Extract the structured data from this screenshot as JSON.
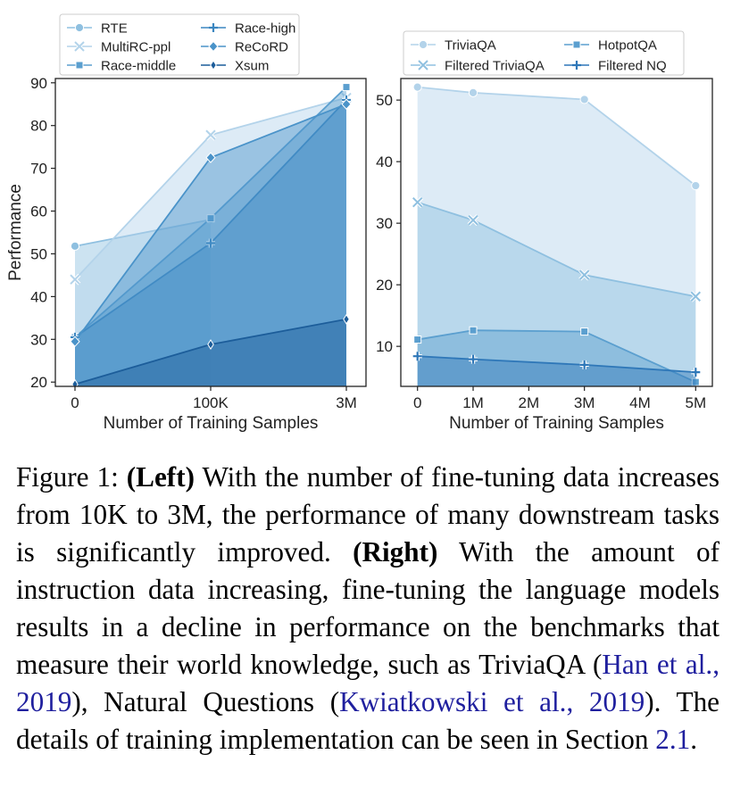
{
  "chart_data": [
    {
      "type": "area",
      "ylabel": "Performance",
      "xlabel": "Number of Training Samples",
      "x_ticks": [
        "0",
        "100K",
        "3M"
      ],
      "ylim": [
        19,
        91
      ],
      "y_ticks": [
        20,
        30,
        40,
        50,
        60,
        70,
        80,
        90
      ],
      "grid": false,
      "legend_position": "top",
      "series": [
        {
          "name": "RTE",
          "marker": "circle",
          "color": "#8fc0e0",
          "values": [
            51.8,
            58,
            null
          ]
        },
        {
          "name": "MultiRC-ppl",
          "marker": "x",
          "color": "#b3d3ea",
          "values": [
            44,
            77.8,
            86.5
          ]
        },
        {
          "name": "Race-middle",
          "marker": "square",
          "color": "#5b9fcf",
          "values": [
            30.5,
            58.3,
            89
          ]
        },
        {
          "name": "Race-high",
          "marker": "plus",
          "color": "#3b86c0",
          "values": [
            30.5,
            52.5,
            86
          ]
        },
        {
          "name": "ReCoRD",
          "marker": "diamond",
          "color": "#4a93c9",
          "values": [
            29.5,
            72.5,
            85
          ]
        },
        {
          "name": "Xsum",
          "marker": "thin_diamond",
          "color": "#1c5d9a",
          "values": [
            19.5,
            28.8,
            34.7
          ]
        }
      ]
    },
    {
      "type": "area",
      "xlabel": "Number of Training Samples",
      "x_ticks": [
        "0",
        "1M",
        "2M",
        "3M",
        "4M",
        "5M"
      ],
      "x_tick_values": [
        0,
        1,
        2,
        3,
        4,
        5
      ],
      "xlim": [
        -0.3,
        5.3
      ],
      "ylim": [
        3.5,
        53.5
      ],
      "y_ticks": [
        10,
        20,
        30,
        40,
        50
      ],
      "grid": false,
      "legend_position": "top",
      "series": [
        {
          "name": "TriviaQA",
          "marker": "circle",
          "color": "#b3d3ea",
          "x": [
            0,
            1,
            3,
            5
          ],
          "values": [
            52.1,
            51.2,
            50.1,
            36.1
          ]
        },
        {
          "name": "Filtered TriviaQA",
          "marker": "x",
          "color": "#8fc0e0",
          "x": [
            0,
            1,
            3,
            5
          ],
          "values": [
            33.4,
            30.5,
            21.6,
            18.1
          ]
        },
        {
          "name": "HotpotQA",
          "marker": "square",
          "color": "#5b9fcf",
          "x": [
            0,
            1,
            3,
            5
          ],
          "values": [
            11.1,
            12.6,
            12.4,
            4.2
          ]
        },
        {
          "name": "Filtered NQ",
          "marker": "plus",
          "color": "#2e77b8",
          "x": [
            0,
            1,
            3,
            5
          ],
          "values": [
            8.4,
            7.9,
            7.0,
            5.8
          ]
        }
      ]
    }
  ],
  "caption": {
    "label": "Figure 1: ",
    "left_tag": "(Left)",
    "part1": " With the number of fine-tuning data increases from 10K to 3M, the performance of many downstream tasks is significantly improved. ",
    "right_tag": "(Right)",
    "part2": " With the amount of instruction data increasing, fine-tuning the language models results in a decline in performance on the benchmarks that measure their world knowledge, such as TriviaQA (",
    "ref1": "Han et al., 2019",
    "part3": "), Natural Questions (",
    "ref2": "Kwiatkowski et al., 2019",
    "part4": "). The details of training implementation can be seen in Section ",
    "ref3": "2.1",
    "part5": "."
  }
}
